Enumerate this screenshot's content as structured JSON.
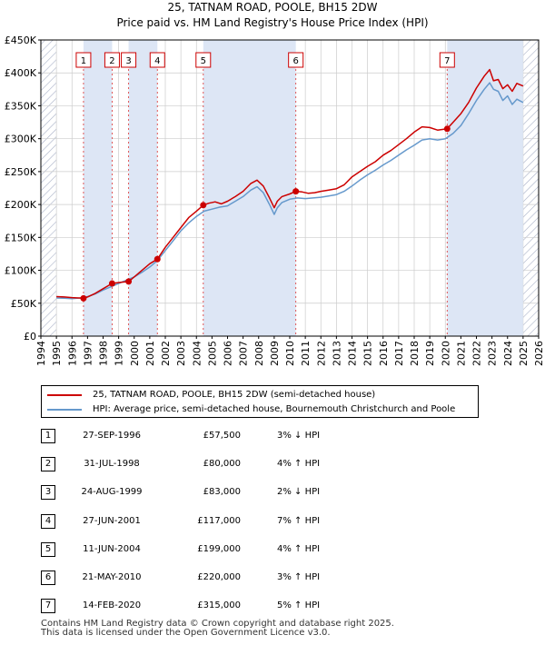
{
  "title": {
    "line1": "25, TATNAM ROAD, POOLE, BH15 2DW",
    "line2": "Price paid vs. HM Land Registry's House Price Index (HPI)"
  },
  "colors": {
    "price_line": "#cc0000",
    "hpi_line": "#6699cc",
    "sale_band": "#dde6f5",
    "forecast_hatch": "#aab2c8",
    "grid": "#cccccc"
  },
  "chart_data": {
    "type": "line",
    "xlim": [
      1994,
      2026
    ],
    "ylim": [
      0,
      450000
    ],
    "x_ticks": [
      1994,
      1995,
      1996,
      1997,
      1998,
      1999,
      2000,
      2001,
      2002,
      2003,
      2004,
      2005,
      2006,
      2007,
      2008,
      2009,
      2010,
      2011,
      2012,
      2013,
      2014,
      2015,
      2016,
      2017,
      2018,
      2019,
      2020,
      2021,
      2022,
      2023,
      2024,
      2025,
      2026
    ],
    "y_ticks": [
      0,
      50000,
      100000,
      150000,
      200000,
      250000,
      300000,
      350000,
      400000,
      450000
    ],
    "y_tick_labels": [
      "£0",
      "£50K",
      "£100K",
      "£150K",
      "£200K",
      "£250K",
      "£300K",
      "£350K",
      "£400K",
      "£450K"
    ],
    "data_start": 1995.0,
    "forecast_start": 2025.0,
    "series": [
      {
        "name": "25, TATNAM ROAD, POOLE, BH15 2DW (semi-detached house)",
        "color": "#cc0000",
        "x": [
          1995.0,
          1995.5,
          1996.0,
          1996.74,
          1997.0,
          1997.5,
          1998.0,
          1998.58,
          1999.0,
          1999.64,
          2000.0,
          2000.5,
          2001.0,
          2001.49,
          2002.0,
          2002.5,
          2003.0,
          2003.5,
          2004.0,
          2004.44,
          2004.8,
          2005.2,
          2005.6,
          2006.0,
          2006.5,
          2007.0,
          2007.5,
          2007.9,
          2008.3,
          2008.7,
          2009.0,
          2009.2,
          2009.5,
          2010.0,
          2010.39,
          2010.8,
          2011.2,
          2011.6,
          2012.0,
          2012.5,
          2013.0,
          2013.5,
          2014.0,
          2014.5,
          2015.0,
          2015.5,
          2016.0,
          2016.5,
          2017.0,
          2017.5,
          2018.0,
          2018.5,
          2019.0,
          2019.5,
          2020.12,
          2020.5,
          2021.0,
          2021.5,
          2022.0,
          2022.5,
          2022.85,
          2023.1,
          2023.4,
          2023.7,
          2024.0,
          2024.3,
          2024.6,
          2025.0
        ],
        "values": [
          60000,
          59500,
          58500,
          57500,
          59500,
          65000,
          72000,
          80000,
          81500,
          83000,
          90000,
          100000,
          110000,
          117000,
          135000,
          150000,
          165000,
          180000,
          190000,
          199000,
          202000,
          204000,
          201000,
          205000,
          212000,
          220000,
          232000,
          237000,
          228000,
          210000,
          195000,
          205000,
          212000,
          216000,
          220000,
          219000,
          217000,
          218000,
          220000,
          222000,
          224000,
          230000,
          242000,
          250000,
          258000,
          265000,
          275000,
          282000,
          291000,
          300000,
          310000,
          318000,
          317000,
          313000,
          315000,
          325000,
          338000,
          355000,
          377000,
          395000,
          405000,
          388000,
          390000,
          376000,
          382000,
          372000,
          384000,
          380000
        ]
      },
      {
        "name": "HPI: Average price, semi-detached house, Bournemouth Christchurch and Poole",
        "color": "#6699cc",
        "x": [
          1995.0,
          1995.5,
          1996.0,
          1996.5,
          1997.0,
          1997.5,
          1998.0,
          1998.5,
          1999.0,
          1999.5,
          2000.0,
          2000.5,
          2001.0,
          2001.5,
          2002.0,
          2002.5,
          2003.0,
          2003.5,
          2004.0,
          2004.5,
          2005.0,
          2005.5,
          2006.0,
          2006.5,
          2007.0,
          2007.5,
          2007.9,
          2008.3,
          2008.7,
          2009.0,
          2009.2,
          2009.5,
          2010.0,
          2010.5,
          2011.0,
          2011.5,
          2012.0,
          2012.5,
          2013.0,
          2013.5,
          2014.0,
          2014.5,
          2015.0,
          2015.5,
          2016.0,
          2016.5,
          2017.0,
          2017.5,
          2018.0,
          2018.5,
          2019.0,
          2019.5,
          2020.0,
          2020.5,
          2021.0,
          2021.5,
          2022.0,
          2022.5,
          2022.85,
          2023.1,
          2023.4,
          2023.7,
          2024.0,
          2024.3,
          2024.6,
          2025.0
        ],
        "values": [
          58000,
          57500,
          57000,
          58000,
          60000,
          64000,
          70000,
          75000,
          80000,
          85000,
          90000,
          97000,
          105000,
          115000,
          130000,
          145000,
          160000,
          172000,
          182000,
          190000,
          193000,
          196000,
          198000,
          205000,
          212000,
          222000,
          227000,
          218000,
          200000,
          185000,
          195000,
          203000,
          208000,
          210000,
          209000,
          210000,
          211000,
          213000,
          215000,
          220000,
          228000,
          237000,
          245000,
          252000,
          260000,
          267000,
          275000,
          283000,
          290000,
          298000,
          300000,
          298000,
          300000,
          308000,
          320000,
          338000,
          358000,
          375000,
          385000,
          375000,
          372000,
          358000,
          365000,
          352000,
          360000,
          355000
        ]
      }
    ],
    "sales": [
      {
        "num": "1",
        "x": 1996.74,
        "price": 57500
      },
      {
        "num": "2",
        "x": 1998.58,
        "price": 80000
      },
      {
        "num": "3",
        "x": 1999.64,
        "price": 83000
      },
      {
        "num": "4",
        "x": 2001.49,
        "price": 117000
      },
      {
        "num": "5",
        "x": 2004.44,
        "price": 199000
      },
      {
        "num": "6",
        "x": 2010.39,
        "price": 220000
      },
      {
        "num": "7",
        "x": 2020.12,
        "price": 315000
      }
    ]
  },
  "legend": {
    "price_label": "25, TATNAM ROAD, POOLE, BH15 2DW (semi-detached house)",
    "hpi_label": "HPI: Average price, semi-detached house, Bournemouth Christchurch and Poole"
  },
  "table": [
    {
      "num": "1",
      "date": "27-SEP-1996",
      "price": "£57,500",
      "hpi": "3% ↓ HPI"
    },
    {
      "num": "2",
      "date": "31-JUL-1998",
      "price": "£80,000",
      "hpi": "4% ↑ HPI"
    },
    {
      "num": "3",
      "date": "24-AUG-1999",
      "price": "£83,000",
      "hpi": "2% ↓ HPI"
    },
    {
      "num": "4",
      "date": "27-JUN-2001",
      "price": "£117,000",
      "hpi": "7% ↑ HPI"
    },
    {
      "num": "5",
      "date": "11-JUN-2004",
      "price": "£199,000",
      "hpi": "4% ↑ HPI"
    },
    {
      "num": "6",
      "date": "21-MAY-2010",
      "price": "£220,000",
      "hpi": "3% ↑ HPI"
    },
    {
      "num": "7",
      "date": "14-FEB-2020",
      "price": "£315,000",
      "hpi": "5% ↑ HPI"
    }
  ],
  "footer": {
    "line1": "Contains HM Land Registry data © Crown copyright and database right 2025.",
    "line2": "This data is licensed under the Open Government Licence v3.0."
  }
}
